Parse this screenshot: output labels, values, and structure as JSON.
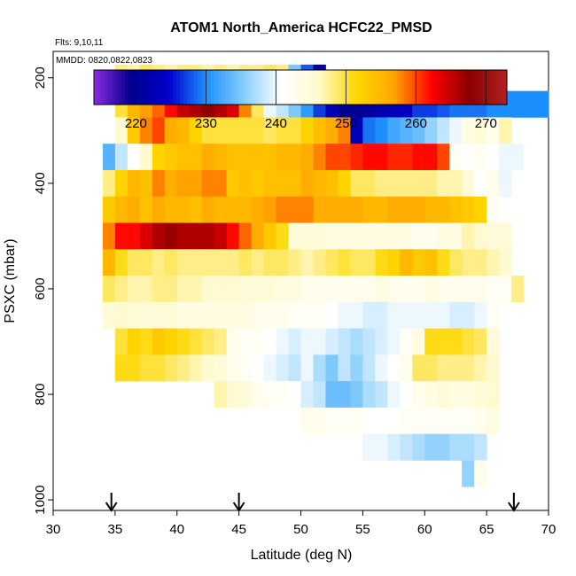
{
  "chart_data": {
    "type": "heatmap",
    "title": "ATOM1 North_America HCFC22_PMSD",
    "flights_note": "Flts: 9,10,11",
    "dates_note": "MMDD: 0820,0822,0823",
    "xlabel": "Latitude (deg N)",
    "ylabel": "PSXC (mbar)",
    "xlim": [
      30,
      70
    ],
    "ylim": [
      1020,
      150
    ],
    "x_ticks": [
      "30",
      "35",
      "40",
      "45",
      "50",
      "55",
      "60",
      "65",
      "70"
    ],
    "y_ticks": [
      "200",
      "400",
      "600",
      "800",
      "1000"
    ],
    "colorbar": {
      "range": [
        214,
        273
      ],
      "ticks": [
        "220",
        "230",
        "240",
        "250",
        "260",
        "270"
      ],
      "colors": [
        "#8a2be2",
        "#00008b",
        "#0000cd",
        "#1e90ff",
        "#87cefa",
        "#ffffff",
        "#fffacd",
        "#ffd700",
        "#ffa500",
        "#ff0000",
        "#8b0000",
        "#b22222"
      ]
    },
    "cell_width_deg": 1,
    "cell_height_mbar": 50,
    "flight_markers_lat": [
      34.7,
      45.0,
      67.2
    ],
    "rows": [
      {
        "p": 200,
        "lat_start": 35,
        "values": [
          248,
          247,
          249,
          248,
          247,
          248,
          248,
          247,
          248,
          247,
          248,
          248,
          249,
          248,
          235,
          228,
          222
        ]
      },
      {
        "p": 250,
        "lat_start": 35,
        "values": [
          250,
          255,
          257,
          259,
          262,
          265,
          266,
          268,
          266,
          264,
          258,
          249,
          240,
          238,
          235,
          231,
          227,
          223,
          220,
          220,
          221,
          222,
          223,
          224,
          227,
          227,
          228,
          229,
          229,
          229,
          230,
          230,
          230,
          230,
          230
        ]
      },
      {
        "p": 300,
        "lat_start": 35,
        "values": [
          246,
          253,
          258,
          260,
          256,
          255,
          252,
          250,
          250,
          250,
          250,
          250,
          249,
          250,
          250,
          252,
          254,
          256,
          258,
          223,
          229,
          230,
          232,
          233,
          234,
          236,
          238,
          240,
          244,
          245,
          243,
          247
        ]
      },
      {
        "p": 350,
        "lat_start": 34,
        "values": [
          233,
          238,
          241,
          246,
          252,
          253,
          254,
          254,
          256,
          255,
          254,
          254,
          254,
          254,
          255,
          255,
          256,
          258,
          260,
          260,
          261,
          262,
          262,
          261,
          261,
          262,
          262,
          260,
          242,
          241,
          242,
          241,
          240,
          240,
          241
        ]
      },
      {
        "p": 400,
        "lat_start": 34,
        "values": [
          248,
          252,
          255,
          254,
          258,
          256,
          257,
          257,
          258,
          258,
          253,
          254,
          253,
          254,
          254,
          254,
          256,
          255,
          254,
          252,
          249,
          249,
          248,
          248,
          248,
          248,
          248,
          247,
          247,
          245,
          241,
          243,
          240
        ]
      },
      {
        "p": 450,
        "lat_start": 34,
        "values": [
          253,
          255,
          256,
          254,
          256,
          255,
          255,
          254,
          256,
          255,
          255,
          255,
          256,
          257,
          258,
          258,
          258,
          256,
          256,
          256,
          256,
          255,
          255,
          256,
          256,
          256,
          255,
          255,
          254,
          253,
          252,
          242
        ]
      },
      {
        "p": 500,
        "lat_start": 34,
        "values": [
          258,
          262,
          262,
          264,
          266,
          267,
          266,
          266,
          266,
          265,
          262,
          259,
          256,
          253,
          251,
          245,
          245,
          245,
          244,
          244,
          244,
          244,
          244,
          244,
          244,
          243,
          243,
          244,
          244,
          247,
          246,
          245,
          245
        ]
      },
      {
        "p": 550,
        "lat_start": 34,
        "values": [
          255,
          251,
          249,
          249,
          248,
          249,
          248,
          248,
          248,
          248,
          248,
          249,
          248,
          249,
          249,
          248,
          247,
          248,
          249,
          250,
          249,
          249,
          251,
          252,
          255,
          253,
          254,
          251,
          249,
          248,
          248,
          247,
          246
        ]
      },
      {
        "p": 600,
        "lat_start": 34,
        "values": [
          249,
          248,
          247,
          247,
          248,
          248,
          247,
          247,
          246,
          246,
          246,
          245,
          245,
          245,
          244,
          244,
          243,
          243,
          243,
          243,
          243,
          243,
          244,
          243,
          243,
          243,
          244,
          243,
          243,
          243,
          243,
          242,
          242,
          248
        ]
      },
      {
        "p": 650,
        "lat_start": 34,
        "values": [
          245,
          246,
          245,
          245,
          245,
          245,
          244,
          244,
          244,
          244,
          244,
          244,
          243,
          243,
          243,
          242,
          242,
          242,
          241,
          240,
          240,
          239,
          239,
          240,
          240,
          240,
          240,
          240,
          239,
          239,
          240,
          242
        ]
      },
      {
        "p": 700,
        "lat_start": 35,
        "values": [
          250,
          252,
          251,
          253,
          252,
          251,
          250,
          249,
          248,
          243,
          242,
          242,
          241,
          240,
          239,
          240,
          240,
          239,
          238,
          237,
          238,
          239,
          240,
          242,
          244,
          251,
          251,
          251,
          250,
          249,
          245
        ]
      },
      {
        "p": 750,
        "lat_start": 35,
        "values": [
          251,
          251,
          250,
          250,
          249,
          248,
          247,
          246,
          245,
          243,
          242,
          241,
          240,
          239,
          238,
          240,
          237,
          235,
          238,
          236,
          238,
          240,
          241,
          243,
          249,
          249,
          248,
          248,
          248,
          247,
          246
        ]
      },
      {
        "p": 800,
        "lat_start": 43,
        "values": [
          247,
          246,
          245,
          243,
          242,
          242,
          241,
          239,
          238,
          234,
          234,
          235,
          237,
          238,
          240,
          241,
          243,
          244,
          245,
          244,
          244,
          245,
          246
        ]
      },
      {
        "p": 850,
        "lat_start": 50,
        "values": [
          243,
          243,
          242,
          242,
          242,
          241,
          241,
          241,
          242,
          242,
          242,
          242,
          242,
          242,
          243,
          244
        ]
      },
      {
        "p": 900,
        "lat_start": 55,
        "values": [
          240,
          240,
          239,
          238,
          237,
          236,
          236,
          237,
          237,
          238
        ]
      },
      {
        "p": 950,
        "lat_start": 63,
        "values": [
          236,
          243
        ]
      }
    ]
  }
}
